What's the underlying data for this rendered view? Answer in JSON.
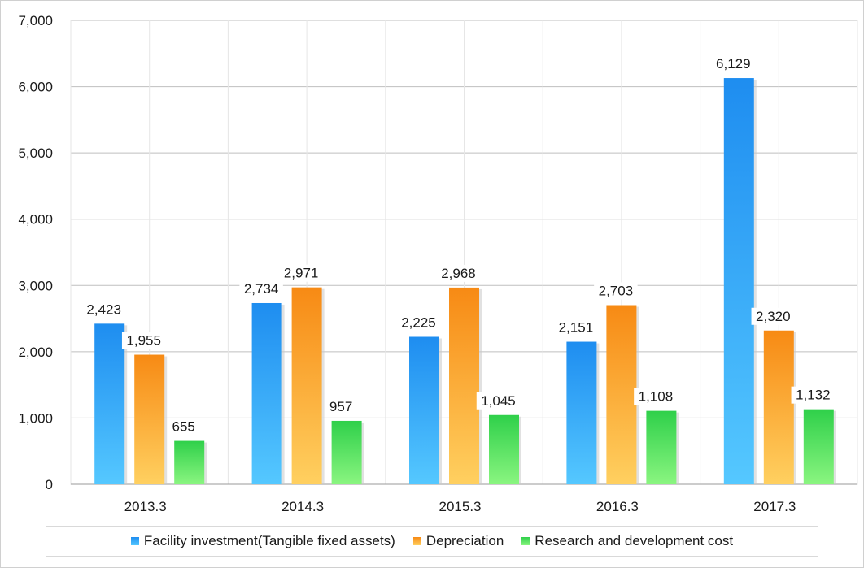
{
  "chart_data": {
    "type": "bar",
    "title": "",
    "xlabel": "",
    "ylabel": "",
    "categories": [
      "2013.3",
      "2014.3",
      "2015.3",
      "2016.3",
      "2017.3"
    ],
    "series": [
      {
        "name": "Facility investment(Tangible fixed assets)",
        "values": [
          2423,
          2734,
          2225,
          2151,
          6129
        ],
        "value_labels": [
          "2,423",
          "2,734",
          "2,225",
          "2,151",
          "6,129"
        ],
        "color_top": "#1e8df0",
        "color_bottom": "#55c8ff"
      },
      {
        "name": "Depreciation",
        "values": [
          1955,
          2971,
          2968,
          2703,
          2320
        ],
        "value_labels": [
          "1,955",
          "2,971",
          "2,968",
          "2,703",
          "2,320"
        ],
        "color_top": "#f78a14",
        "color_bottom": "#ffd060"
      },
      {
        "name": "Research and development cost",
        "values": [
          655,
          957,
          1045,
          1108,
          1132
        ],
        "value_labels": [
          "655",
          "957",
          "1,045",
          "1,108",
          "1,132"
        ],
        "color_top": "#2fd04a",
        "color_bottom": "#8af580"
      }
    ],
    "ylim": [
      0,
      7000
    ],
    "yticks": [
      0,
      1000,
      2000,
      3000,
      4000,
      5000,
      6000,
      7000
    ],
    "ytick_labels": [
      "0",
      "1,000",
      "2,000",
      "3,000",
      "4,000",
      "5,000",
      "6,000",
      "7,000"
    ],
    "grid": true,
    "legend_position": "bottom"
  }
}
